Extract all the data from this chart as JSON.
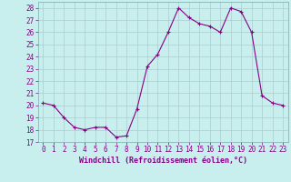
{
  "hours": [
    0,
    1,
    2,
    3,
    4,
    5,
    6,
    7,
    8,
    9,
    10,
    11,
    12,
    13,
    14,
    15,
    16,
    17,
    18,
    19,
    20,
    21,
    22,
    23
  ],
  "values": [
    20.2,
    20.0,
    19.0,
    18.2,
    18.0,
    18.2,
    18.2,
    17.4,
    17.5,
    19.7,
    23.2,
    24.2,
    26.0,
    28.0,
    27.2,
    26.7,
    26.5,
    26.0,
    28.0,
    27.7,
    26.0,
    20.8,
    20.2,
    20.0
  ],
  "line_color": "#880088",
  "marker": "+",
  "marker_size": 3.0,
  "bg_color": "#c8eeed",
  "grid_color": "#aacccc",
  "xlabel": "Windchill (Refroidissement éolien,°C)",
  "xlabel_color": "#880088",
  "xlabel_fontsize": 6.0,
  "tick_color": "#880088",
  "tick_fontsize": 5.5,
  "ylim": [
    17,
    28.5
  ],
  "xlim": [
    -0.5,
    23.5
  ],
  "xtick_labels": [
    "0",
    "1",
    "2",
    "3",
    "4",
    "5",
    "6",
    "7",
    "8",
    "9",
    "10",
    "11",
    "12",
    "13",
    "14",
    "15",
    "16",
    "17",
    "18",
    "19",
    "20",
    "21",
    "22",
    "23"
  ]
}
